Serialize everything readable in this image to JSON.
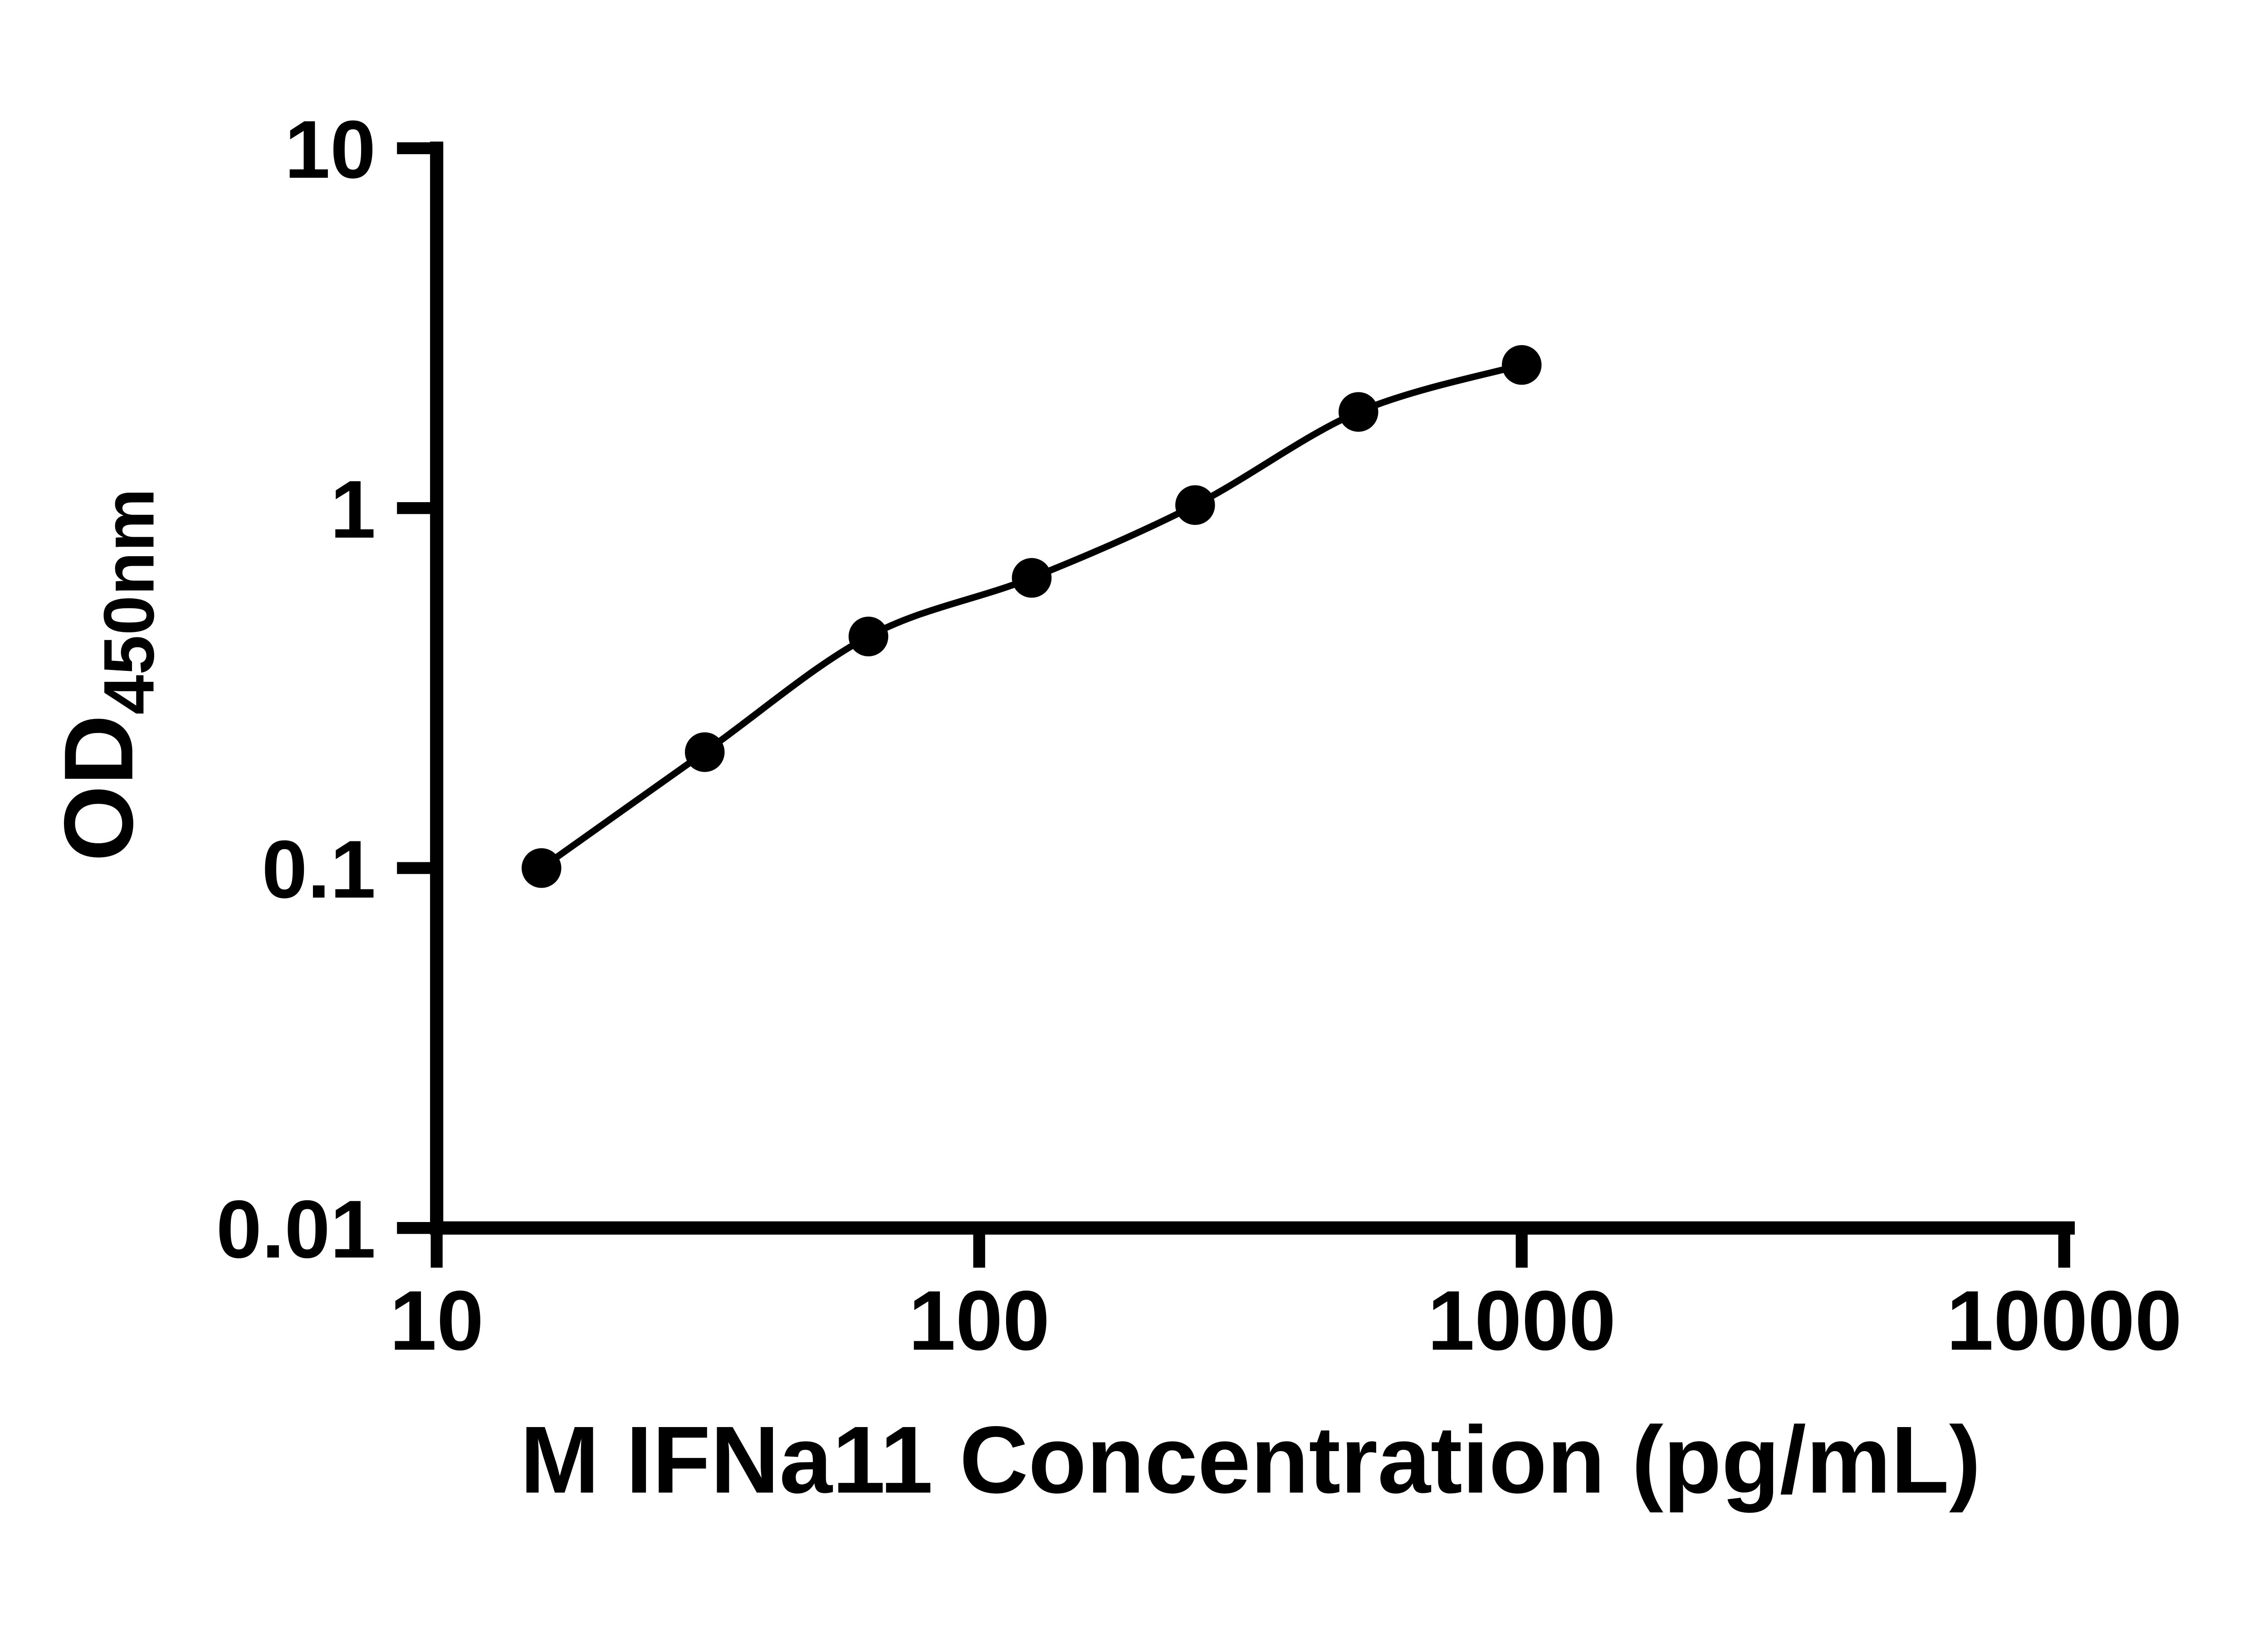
{
  "chart_data": {
    "type": "scatter",
    "x_scale": "log",
    "y_scale": "log",
    "x": [
      15.6,
      31.2,
      62.5,
      125,
      250,
      500,
      1000
    ],
    "y": [
      0.1,
      0.21,
      0.44,
      0.64,
      1.02,
      1.85,
      2.5
    ],
    "xlabel": "M IFNa11 Concentration (pg/mL)",
    "ylabel_main": "OD",
    "ylabel_sub": "450nm",
    "xlim": [
      10,
      10000
    ],
    "ylim": [
      0.01,
      10
    ],
    "x_ticks": [
      10,
      100,
      1000,
      10000
    ],
    "x_tick_labels": [
      "10",
      "100",
      "1000",
      "10000"
    ],
    "y_ticks": [
      0.01,
      0.1,
      1,
      10
    ],
    "y_tick_labels": [
      "0.01",
      "0.1",
      "1",
      "10"
    ],
    "grid": false,
    "legend": null,
    "line": {
      "show": true,
      "color": "#000000",
      "width": 5
    },
    "marker": {
      "shape": "circle",
      "color": "#000000",
      "radius": 15
    },
    "axis_color": "#000000",
    "background": "#ffffff"
  }
}
